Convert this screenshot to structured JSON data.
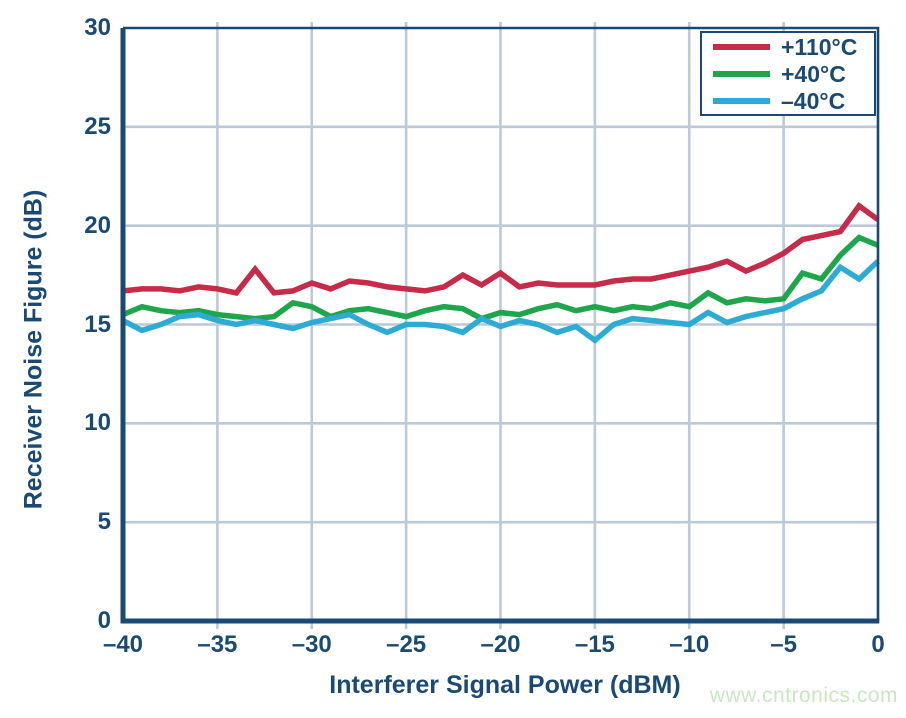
{
  "watermark": "www.cntronics.com",
  "colors": {
    "axis_navy": "#1a4a74",
    "grid": "#bcc9d9",
    "background": "#ffffff",
    "watermark_green": "#c9e6c2",
    "series_red": "#c62b49",
    "series_green": "#1fa64c",
    "series_cyan": "#2eabd5"
  },
  "chart_data": {
    "type": "line",
    "title": "",
    "xlabel": "Interferer Signal Power (dBM)",
    "ylabel": "Receiver Noise Figure (dB)",
    "xlim": [
      -40,
      0
    ],
    "ylim": [
      0,
      30
    ],
    "grid": true,
    "legend_position": "top-right",
    "x_ticks": [
      -40,
      -35,
      -30,
      -25,
      -20,
      -15,
      -10,
      -5,
      0
    ],
    "x_tick_labels": [
      "–40",
      "–35",
      "–30",
      "–25",
      "–20",
      "–15",
      "–10",
      "–5",
      "0"
    ],
    "y_ticks": [
      0,
      5,
      10,
      15,
      20,
      25,
      30
    ],
    "y_tick_labels": [
      "0",
      "5",
      "10",
      "15",
      "20",
      "25",
      "30"
    ],
    "x": [
      -40,
      -39,
      -38,
      -37,
      -36,
      -35,
      -34,
      -33,
      -32,
      -31,
      -30,
      -29,
      -28,
      -27,
      -26,
      -25,
      -24,
      -23,
      -22,
      -21,
      -20,
      -19,
      -18,
      -17,
      -16,
      -15,
      -14,
      -13,
      -12,
      -11,
      -10,
      -9,
      -8,
      -7,
      -6,
      -5,
      -4,
      -3,
      -2,
      -1,
      0
    ],
    "series": [
      {
        "name": "+110°C",
        "color": "#c62b49",
        "values": [
          16.7,
          16.8,
          16.8,
          16.7,
          16.9,
          16.8,
          16.6,
          17.8,
          16.6,
          16.7,
          17.1,
          16.8,
          17.2,
          17.1,
          16.9,
          16.8,
          16.7,
          16.9,
          17.5,
          17.0,
          17.6,
          16.9,
          17.1,
          17.0,
          17.0,
          17.0,
          17.2,
          17.3,
          17.3,
          17.5,
          17.7,
          17.9,
          18.2,
          17.7,
          18.1,
          18.6,
          19.3,
          19.5,
          19.7,
          21.0,
          20.3
        ]
      },
      {
        "name": "+40°C",
        "color": "#1fa64c",
        "values": [
          15.5,
          15.9,
          15.7,
          15.6,
          15.7,
          15.5,
          15.4,
          15.3,
          15.4,
          16.1,
          15.9,
          15.4,
          15.7,
          15.8,
          15.6,
          15.4,
          15.7,
          15.9,
          15.8,
          15.3,
          15.6,
          15.5,
          15.8,
          16.0,
          15.7,
          15.9,
          15.7,
          15.9,
          15.8,
          16.1,
          15.9,
          16.6,
          16.1,
          16.3,
          16.2,
          16.3,
          17.6,
          17.3,
          18.5,
          19.4,
          19.0
        ]
      },
      {
        "name": "–40°C",
        "color": "#2eabd5",
        "values": [
          15.2,
          14.7,
          15.0,
          15.4,
          15.5,
          15.2,
          15.0,
          15.2,
          15.0,
          14.8,
          15.1,
          15.3,
          15.5,
          15.0,
          14.6,
          15.0,
          15.0,
          14.9,
          14.6,
          15.3,
          14.9,
          15.2,
          15.0,
          14.6,
          14.9,
          14.2,
          15.0,
          15.3,
          15.2,
          15.1,
          15.0,
          15.6,
          15.1,
          15.4,
          15.6,
          15.8,
          16.3,
          16.7,
          17.9,
          17.3,
          18.2
        ]
      }
    ]
  }
}
